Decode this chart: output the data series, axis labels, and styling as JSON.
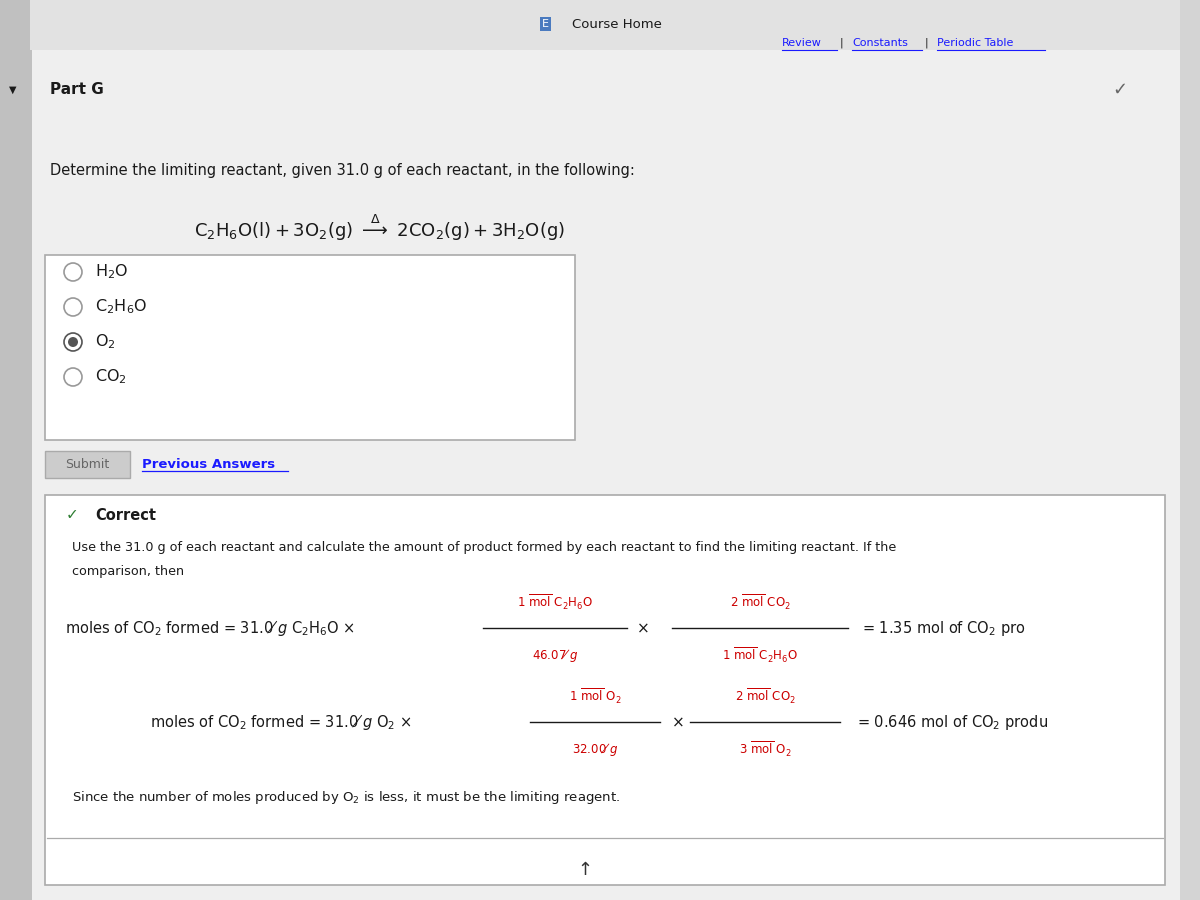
{
  "bg_color": "#d4d4d4",
  "content_bg": "#efefef",
  "header_text": "Course Home",
  "part_label": "Part G",
  "question_text": "Determine the limiting reactant, given 31.0 g of each reactant, in the following:",
  "selected_option": 2,
  "submit_text": "Submit",
  "prev_answers_text": "Previous Answers",
  "correct_label": "Correct",
  "explanation_line1": "Use the 31.0 g of each reactant and calculate the amount of product formed by each reactant to find the limiting reactant. If the",
  "explanation_line2": "comparison, then",
  "checkmark_color": "#2e7d32",
  "formula_color": "#cc0000",
  "text_color": "#1a1a1a",
  "nav_color": "#1a1aff",
  "border_color": "#aaaaaa",
  "submit_bg": "#cccccc",
  "left_bar_color": "#c0c0c0",
  "white": "#ffffff"
}
